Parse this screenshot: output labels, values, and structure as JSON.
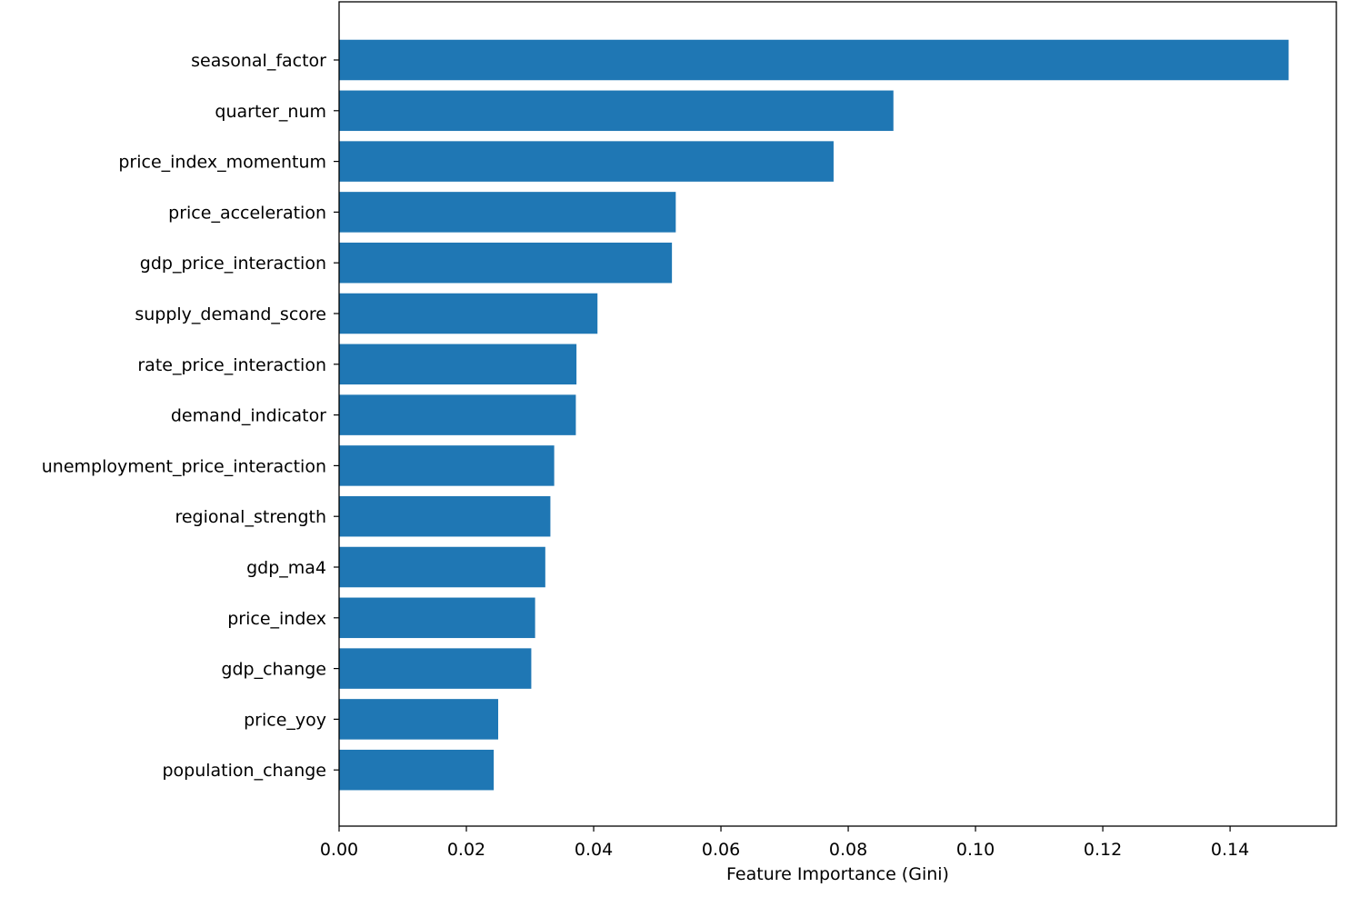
{
  "chart_data": {
    "type": "bar",
    "orientation": "horizontal",
    "categories": [
      "seasonal_factor",
      "quarter_num",
      "price_index_momentum",
      "price_acceleration",
      "gdp_price_interaction",
      "supply_demand_score",
      "rate_price_interaction",
      "demand_indicator",
      "unemployment_price_interaction",
      "regional_strength",
      "gdp_ma4",
      "price_index",
      "gdp_change",
      "price_yoy",
      "population_change"
    ],
    "values": [
      0.1492,
      0.0871,
      0.0777,
      0.0529,
      0.0523,
      0.0406,
      0.0373,
      0.0372,
      0.0338,
      0.0332,
      0.0324,
      0.0308,
      0.0302,
      0.025,
      0.0243
    ],
    "xlabel": "Feature Importance (Gini)",
    "ylabel": "",
    "title": "",
    "xlim": [
      0,
      0.1567
    ],
    "xticks": [
      "0.00",
      "0.02",
      "0.04",
      "0.06",
      "0.08",
      "0.10",
      "0.12",
      "0.14"
    ],
    "grid": false,
    "bar_color": "#1f77b4"
  }
}
